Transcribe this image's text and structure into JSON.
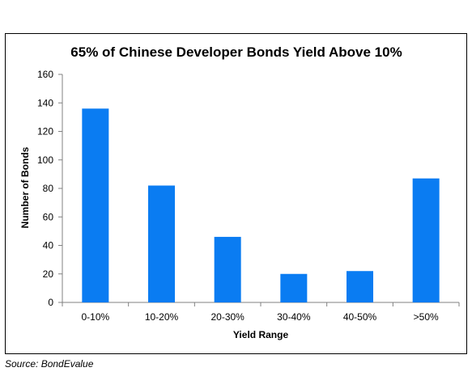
{
  "source": "Source: BondEvalue",
  "chart_data": {
    "type": "bar",
    "title": "65% of Chinese Developer Bonds Yield Above 10%",
    "xlabel": "Yield Range",
    "ylabel": "Number of Bonds",
    "categories": [
      "0-10%",
      "10-20%",
      "20-30%",
      "30-40%",
      "40-50%",
      ">50%"
    ],
    "values": [
      136,
      82,
      46,
      20,
      22,
      87
    ],
    "ylim": [
      0,
      160
    ],
    "yticks": [
      0,
      20,
      40,
      60,
      80,
      100,
      120,
      140,
      160
    ],
    "grid": false,
    "legend": "none",
    "bar_color": "#0a7cf2"
  }
}
